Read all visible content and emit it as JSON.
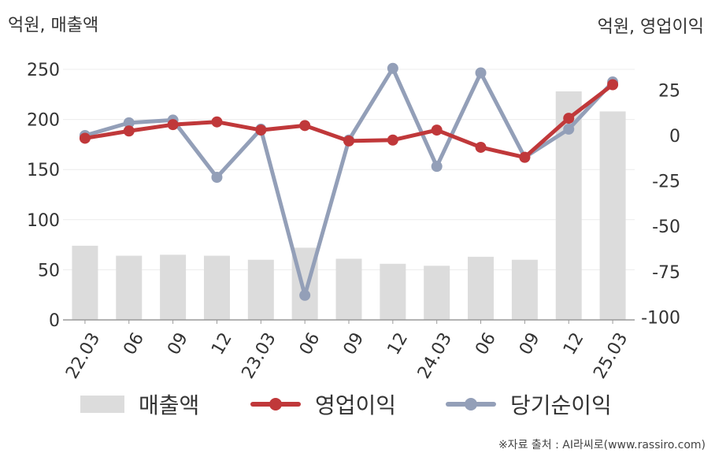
{
  "units": {
    "left": "억원, 매출액",
    "right": "억원, 영업이익"
  },
  "source": "※자료 출처 : AI라씨로(www.rassiro.com)",
  "legend": [
    {
      "label": "매출액",
      "kind": "bar",
      "color": "#dcdcdc"
    },
    {
      "label": "영업이익",
      "kind": "line",
      "color": "#c0383a"
    },
    {
      "label": "당기순이익",
      "kind": "line",
      "color": "#939fb8"
    }
  ],
  "chart_data": {
    "type": "bar+line",
    "categories": [
      "22.03",
      "06",
      "09",
      "12",
      "23.03",
      "06",
      "09",
      "12",
      "24.03",
      "06",
      "09",
      "12",
      "25.03"
    ],
    "left_axis": {
      "ylim": [
        0,
        250
      ],
      "ticks": [
        0,
        50,
        100,
        150,
        200,
        250
      ]
    },
    "right_axis": {
      "ylim": [
        -100,
        35
      ],
      "ticks": [
        25,
        0,
        -25,
        -50,
        -75,
        -100
      ]
    },
    "grid": true,
    "series": [
      {
        "name": "매출액",
        "type": "bar",
        "axis": "left",
        "color": "#dcdcdc",
        "values": [
          74,
          64,
          65,
          64,
          60,
          72,
          61,
          56,
          54,
          63,
          60,
          228,
          208
        ]
      },
      {
        "name": "영업이익",
        "type": "line",
        "axis": "right",
        "color": "#c0383a",
        "values": [
          -1.5,
          2.5,
          6,
          7.5,
          3,
          5.5,
          -3,
          -2.5,
          3,
          -6.5,
          -12,
          9.5,
          28
        ]
      },
      {
        "name": "당기순이익",
        "type": "line",
        "axis": "right",
        "color": "#939fb8",
        "values": [
          0,
          7,
          8.5,
          -23,
          3.5,
          -88,
          -2.5,
          37,
          -17,
          34.5,
          -12,
          3.5,
          29.5
        ]
      }
    ]
  }
}
